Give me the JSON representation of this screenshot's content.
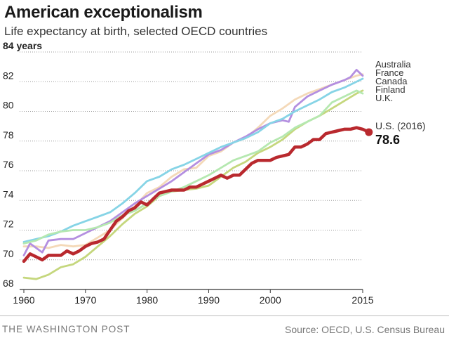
{
  "header": {
    "title": "American exceptionalism",
    "subtitle": "Life expectancy at birth, selected OECD countries"
  },
  "footer": {
    "publisher": "THE WASHINGTON POST",
    "source": "Source: OECD, U.S. Census Bureau"
  },
  "chart_data": {
    "type": "line",
    "title": "American exceptionalism",
    "subtitle": "Life expectancy at birth, selected OECD countries",
    "ylabel_unit": "years",
    "xlim": [
      1960,
      2015
    ],
    "ylim": [
      68,
      84
    ],
    "x_ticks": [
      "1960",
      "1970",
      "1980",
      "1990",
      "2000",
      "2015"
    ],
    "y_ticks": [
      "68",
      "70",
      "72",
      "74",
      "76",
      "78",
      "80",
      "82",
      "84 years"
    ],
    "grid": "horizontal-dotted",
    "legend_labels": [
      "Australia",
      "France",
      "Canada",
      "Finland",
      "U.K."
    ],
    "legend_placement": "right",
    "series": [
      {
        "name": "Australia",
        "color": "#f4d9b8",
        "x": [
          1960,
          1962,
          1964,
          1966,
          1968,
          1970,
          1972,
          1974,
          1976,
          1978,
          1980,
          1982,
          1984,
          1986,
          1988,
          1990,
          1992,
          1994,
          1996,
          1998,
          2000,
          2002,
          2004,
          2006,
          2008,
          2010,
          2012,
          2014,
          2015
        ],
        "y": [
          70.9,
          70.9,
          70.8,
          71.0,
          70.9,
          71.0,
          71.5,
          72.0,
          72.8,
          73.6,
          74.5,
          74.9,
          75.6,
          76.1,
          76.2,
          77.0,
          77.3,
          77.9,
          78.2,
          78.9,
          79.7,
          80.2,
          80.8,
          81.2,
          81.5,
          81.8,
          82.1,
          82.4,
          82.5
        ]
      },
      {
        "name": "France",
        "color": "#b48fe0",
        "x": [
          1960,
          1961,
          1962,
          1963,
          1964,
          1966,
          1968,
          1970,
          1972,
          1974,
          1976,
          1978,
          1980,
          1982,
          1984,
          1986,
          1988,
          1990,
          1992,
          1994,
          1996,
          1998,
          2000,
          2002,
          2003,
          2004,
          2006,
          2008,
          2010,
          2012,
          2013,
          2014,
          2015
        ],
        "y": [
          70.3,
          71.1,
          70.8,
          70.5,
          71.3,
          71.4,
          71.4,
          71.8,
          72.2,
          72.6,
          73.2,
          73.8,
          74.3,
          74.8,
          75.3,
          75.9,
          76.5,
          77.1,
          77.4,
          77.9,
          78.3,
          78.8,
          79.2,
          79.4,
          79.3,
          80.3,
          81.0,
          81.4,
          81.8,
          82.1,
          82.3,
          82.8,
          82.4
        ]
      },
      {
        "name": "Canada",
        "color": "#86d4e6",
        "x": [
          1960,
          1962,
          1964,
          1966,
          1968,
          1970,
          1972,
          1974,
          1976,
          1978,
          1980,
          1982,
          1984,
          1986,
          1988,
          1990,
          1992,
          1994,
          1996,
          1998,
          2000,
          2002,
          2004,
          2006,
          2008,
          2010,
          2012,
          2014,
          2015
        ],
        "y": [
          71.2,
          71.4,
          71.6,
          71.9,
          72.3,
          72.6,
          72.9,
          73.2,
          73.8,
          74.5,
          75.3,
          75.6,
          76.1,
          76.4,
          76.8,
          77.2,
          77.6,
          77.9,
          78.2,
          78.6,
          79.2,
          79.5,
          80.0,
          80.4,
          80.8,
          81.3,
          81.6,
          82.0,
          82.2
        ]
      },
      {
        "name": "Finland",
        "color": "#c5d77d",
        "x": [
          1960,
          1962,
          1964,
          1966,
          1968,
          1970,
          1972,
          1974,
          1976,
          1978,
          1980,
          1982,
          1984,
          1986,
          1988,
          1990,
          1992,
          1994,
          1996,
          1998,
          2000,
          2002,
          2004,
          2006,
          2008,
          2010,
          2012,
          2014,
          2015
        ],
        "y": [
          68.8,
          68.7,
          69.0,
          69.5,
          69.7,
          70.2,
          70.9,
          71.6,
          72.4,
          73.1,
          73.6,
          74.3,
          74.6,
          74.7,
          74.8,
          75.0,
          75.6,
          76.2,
          76.6,
          77.2,
          77.6,
          78.1,
          78.8,
          79.3,
          79.7,
          80.2,
          80.7,
          81.2,
          81.4
        ]
      },
      {
        "name": "U.K.",
        "color": "#b5e8b0",
        "x": [
          1960,
          1962,
          1964,
          1966,
          1968,
          1970,
          1972,
          1974,
          1976,
          1978,
          1980,
          1982,
          1984,
          1986,
          1988,
          1990,
          1992,
          1994,
          1996,
          1998,
          2000,
          2002,
          2004,
          2006,
          2008,
          2010,
          2012,
          2014,
          2015
        ],
        "y": [
          71.1,
          71.3,
          71.7,
          71.9,
          72.0,
          72.0,
          72.2,
          72.5,
          73.0,
          73.3,
          73.8,
          74.3,
          74.6,
          74.9,
          75.3,
          75.7,
          76.2,
          76.7,
          77.0,
          77.3,
          77.9,
          78.3,
          78.9,
          79.3,
          79.7,
          80.6,
          81.0,
          81.4,
          81.2
        ]
      },
      {
        "name": "U.S.",
        "color": "#b9292e",
        "x": [
          1960,
          1961,
          1962,
          1963,
          1964,
          1965,
          1966,
          1967,
          1968,
          1969,
          1970,
          1971,
          1972,
          1973,
          1974,
          1975,
          1976,
          1977,
          1978,
          1979,
          1980,
          1981,
          1982,
          1983,
          1984,
          1985,
          1986,
          1987,
          1988,
          1989,
          1990,
          1991,
          1992,
          1993,
          1994,
          1995,
          1996,
          1997,
          1998,
          1999,
          2000,
          2001,
          2002,
          2003,
          2004,
          2005,
          2006,
          2007,
          2008,
          2009,
          2010,
          2011,
          2012,
          2013,
          2014,
          2015,
          2016
        ],
        "y": [
          69.9,
          70.4,
          70.2,
          70.0,
          70.3,
          70.3,
          70.3,
          70.6,
          70.4,
          70.6,
          70.9,
          71.1,
          71.2,
          71.4,
          72.0,
          72.6,
          72.9,
          73.3,
          73.5,
          73.9,
          73.7,
          74.1,
          74.5,
          74.6,
          74.7,
          74.7,
          74.7,
          74.9,
          74.9,
          75.1,
          75.3,
          75.5,
          75.7,
          75.5,
          75.7,
          75.7,
          76.1,
          76.5,
          76.7,
          76.7,
          76.7,
          76.9,
          77.0,
          77.1,
          77.6,
          77.6,
          77.8,
          78.1,
          78.1,
          78.5,
          78.6,
          78.7,
          78.8,
          78.8,
          78.9,
          78.8,
          78.6
        ]
      }
    ],
    "annotation": {
      "label": "U.S. (2016)",
      "value": "78.6",
      "x": 2016,
      "y": 78.6
    }
  },
  "colors": {
    "us_line": "#b9292e",
    "grid": "#9a9a9a",
    "axis": "#333333",
    "title": "#1a1a1a",
    "footer": "#777777"
  }
}
